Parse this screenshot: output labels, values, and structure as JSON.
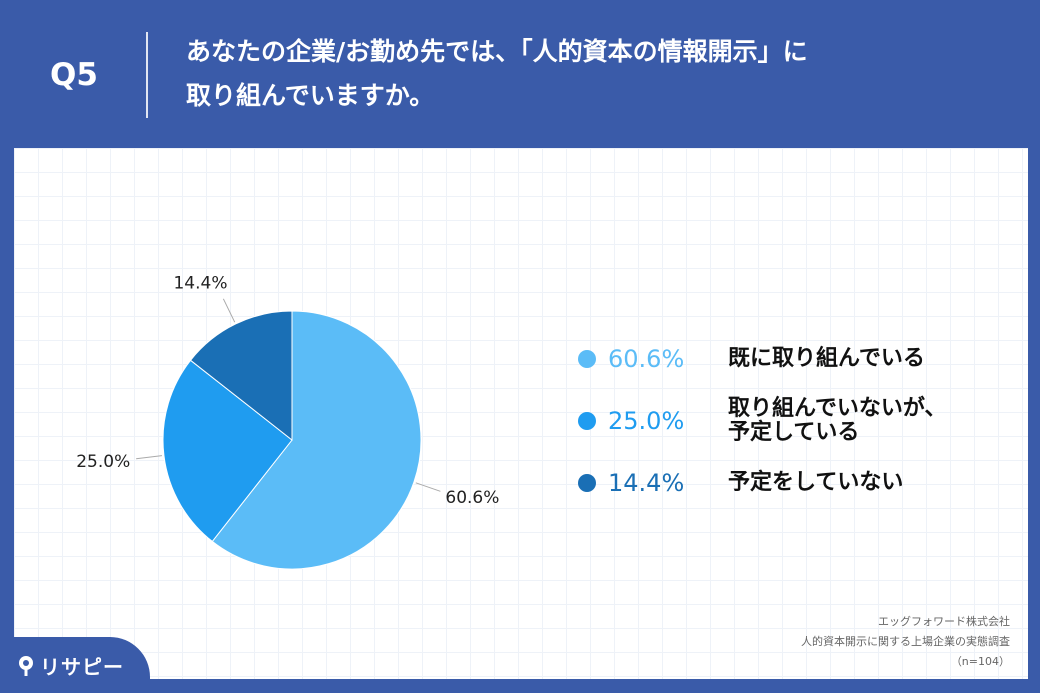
{
  "header": {
    "qnum": "Q5",
    "question_line1": "あなたの企業/お勤め先では、「人的資本の情報開示」に",
    "question_line2": "取り組んでいますか。"
  },
  "chart_data": {
    "type": "pie",
    "title": "",
    "slices": [
      {
        "label": "既に取り組んでいる",
        "value": 60.6,
        "display": "60.6%",
        "color": "#5bbcf7"
      },
      {
        "label": "取り組んでいないが、\n予定している",
        "value": 25.0,
        "display": "25.0%",
        "color": "#1f9cf0"
      },
      {
        "label": "予定をしていない",
        "value": 14.4,
        "display": "14.4%",
        "color": "#1a6fb5"
      }
    ],
    "start_angle_deg": 0,
    "direction": "clockwise",
    "legend_position": "right"
  },
  "legend": {
    "pct_colors": [
      "#5bbcf7",
      "#1f9cf0",
      "#1a6fb5"
    ]
  },
  "source": {
    "line1": "エッグフォワード株式会社",
    "line2": "人的資本開示に関する上場企業の実態調査",
    "line3": "（n=104）"
  },
  "logo": {
    "text": "リサピー",
    "icon": "pin-icon"
  }
}
